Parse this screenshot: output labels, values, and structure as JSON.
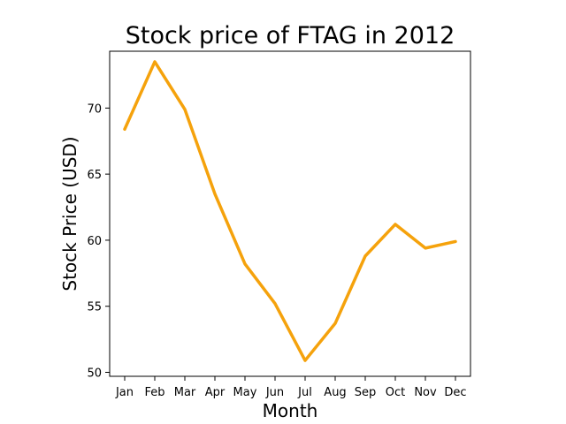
{
  "chart_data": {
    "type": "line",
    "title": "Stock price of FTAG in 2012",
    "xlabel": "Month",
    "ylabel": "Stock Price (USD)",
    "categories": [
      "Jan",
      "Feb",
      "Mar",
      "Apr",
      "May",
      "Jun",
      "Jul",
      "Aug",
      "Sep",
      "Oct",
      "Nov",
      "Dec"
    ],
    "series": [
      {
        "values": [
          68.4,
          73.5,
          69.9,
          63.5,
          58.2,
          55.2,
          50.9,
          53.7,
          58.8,
          61.2,
          59.4,
          59.9
        ],
        "color": "#f5a20c"
      }
    ],
    "ylim": [
      49.7,
      74.3
    ],
    "yticks": [
      50,
      55,
      60,
      65,
      70
    ],
    "grid": false,
    "legend": "none"
  }
}
